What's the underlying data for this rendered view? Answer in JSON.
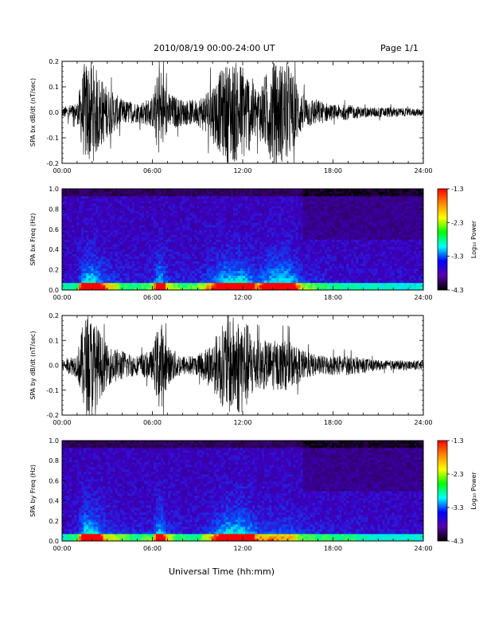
{
  "header": {
    "title": "2010/08/19   00:00-24:00 UT",
    "page": "Page 1/1"
  },
  "footer": {
    "xlabel": "Universal Time (hh:mm)"
  },
  "colorbar": {
    "label": "Log₁₀ Power",
    "ticks": [
      "-1.3",
      "-2.3",
      "-3.3",
      "-4.3"
    ],
    "colors": [
      "#ff0000",
      "#ff8800",
      "#ffff00",
      "#00ff00",
      "#00ffff",
      "#0000ff",
      "#5a00aa",
      "#000000"
    ]
  },
  "chart_data": [
    {
      "type": "line",
      "ylabel": "SPA bx dB/dt (nT/sec)",
      "xlim": [
        0,
        24
      ],
      "ylim": [
        -0.2,
        0.2
      ],
      "yticks": [
        "0.2",
        "0.1",
        "0.0",
        "-0.1",
        "-0.2"
      ],
      "xticks": [
        "00:00",
        "06:00",
        "12:00",
        "18:00",
        "24:00"
      ],
      "activity_envelope": {
        "hours": [
          0,
          1,
          1.5,
          2,
          3,
          4,
          5,
          6,
          6.5,
          7,
          8,
          9,
          10,
          11,
          12,
          13,
          14,
          15,
          16,
          17,
          18,
          19,
          20,
          21,
          22,
          23,
          24
        ],
        "amplitude": [
          0.02,
          0.04,
          0.2,
          0.2,
          0.1,
          0.05,
          0.04,
          0.06,
          0.2,
          0.08,
          0.05,
          0.05,
          0.12,
          0.2,
          0.2,
          0.1,
          0.2,
          0.2,
          0.07,
          0.05,
          0.03,
          0.03,
          0.02,
          0.02,
          0.02,
          0.015,
          0.015
        ]
      }
    },
    {
      "type": "heatmap",
      "ylabel": "SPA bx Freq (Hz)",
      "xlim": [
        0,
        24
      ],
      "ylim": [
        0,
        1.0
      ],
      "yticks": [
        "1.0",
        "0.8",
        "0.6",
        "0.4",
        "0.2",
        "0.0"
      ],
      "xticks": [
        "00:00",
        "06:00",
        "12:00",
        "18:00",
        "24:00"
      ],
      "zlim": [
        -4.3,
        -1.3
      ],
      "zlabel": "Log₁₀ Power"
    },
    {
      "type": "line",
      "ylabel": "SPA by dB/dt (nT/sec)",
      "xlim": [
        0,
        24
      ],
      "ylim": [
        -0.2,
        0.2
      ],
      "yticks": [
        "0.2",
        "0.1",
        "0.0",
        "-0.1",
        "-0.2"
      ],
      "xticks": [
        "00:00",
        "06:00",
        "12:00",
        "18:00",
        "24:00"
      ],
      "activity_envelope": {
        "hours": [
          0,
          1,
          1.5,
          2,
          3,
          4,
          5,
          6,
          6.5,
          7,
          8,
          9,
          10,
          11,
          12,
          13,
          14,
          15,
          16,
          17,
          18,
          19,
          20,
          21,
          22,
          23,
          24
        ],
        "amplitude": [
          0.02,
          0.05,
          0.2,
          0.2,
          0.08,
          0.06,
          0.04,
          0.06,
          0.2,
          0.08,
          0.04,
          0.04,
          0.1,
          0.2,
          0.2,
          0.1,
          0.1,
          0.1,
          0.06,
          0.04,
          0.04,
          0.04,
          0.03,
          0.02,
          0.02,
          0.02,
          0.02
        ]
      }
    },
    {
      "type": "heatmap",
      "ylabel": "SPA by Freq (Hz)",
      "xlim": [
        0,
        24
      ],
      "ylim": [
        0,
        1.0
      ],
      "yticks": [
        "1.0",
        "0.8",
        "0.6",
        "0.4",
        "0.2",
        "0.0"
      ],
      "xticks": [
        "00:00",
        "06:00",
        "12:00",
        "18:00",
        "24:00"
      ],
      "zlim": [
        -4.3,
        -1.3
      ],
      "zlabel": "Log₁₀ Power"
    }
  ]
}
